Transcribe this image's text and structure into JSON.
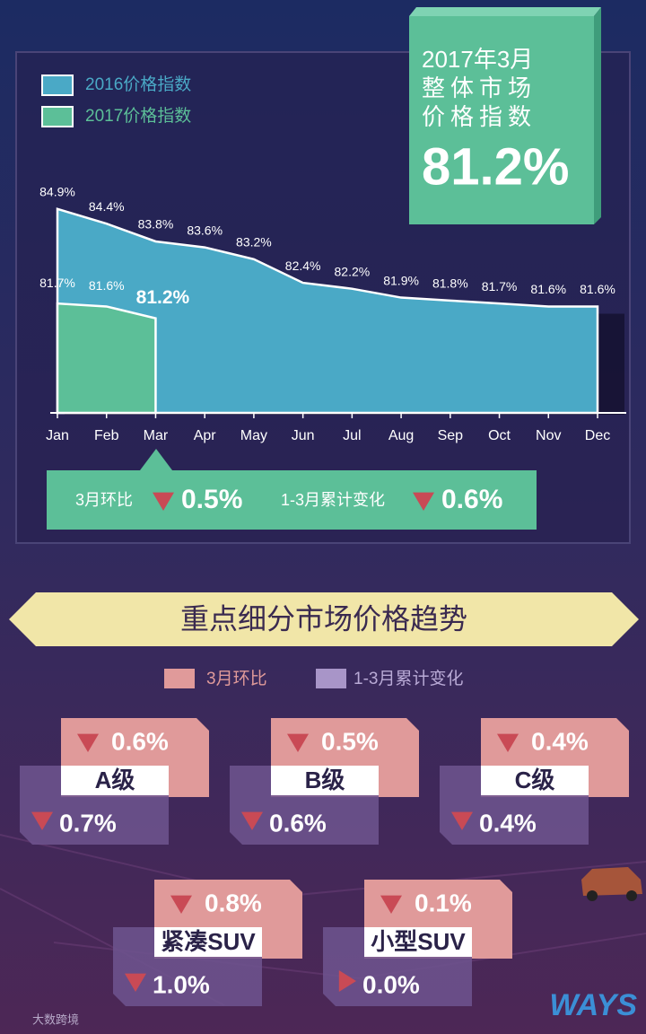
{
  "chart_data": {
    "type": "area",
    "categories": [
      "Jan",
      "Feb",
      "Mar",
      "Apr",
      "May",
      "Jun",
      "Jul",
      "Aug",
      "Sep",
      "Oct",
      "Nov",
      "Dec"
    ],
    "series": [
      {
        "name": "2016价格指数",
        "color": "#4aa9c6",
        "values": [
          84.9,
          84.4,
          83.8,
          83.6,
          83.2,
          82.4,
          82.2,
          81.9,
          81.8,
          81.7,
          81.6,
          81.6
        ],
        "value_labels": [
          "84.9%",
          "84.4%",
          "83.8%",
          "83.6%",
          "83.2%",
          "82.4%",
          "82.2%",
          "81.9%",
          "81.8%",
          "81.7%",
          "81.6%",
          "81.6%"
        ]
      },
      {
        "name": "2017价格指数",
        "color": "#5cbf98",
        "values": [
          81.7,
          81.6,
          81.2,
          null,
          null,
          null,
          null,
          null,
          null,
          null,
          null,
          null
        ],
        "value_labels": [
          "81.7%",
          "81.6%",
          "81.2%",
          null,
          null,
          null,
          null,
          null,
          null,
          null,
          null,
          null
        ]
      }
    ],
    "ylim": [
      78,
      85.5
    ],
    "legend": "top-left"
  },
  "callout": {
    "lines": [
      "2017年3月",
      "整体市场",
      "价格指数"
    ],
    "value": "81.2%"
  },
  "summary": [
    {
      "label": "3月环比",
      "value": "0.5%",
      "trend": "down"
    },
    {
      "label": "1-3月累计变化",
      "value": "0.6%",
      "trend": "down"
    }
  ],
  "section": {
    "title": "重点细分市场价格趋势",
    "legend": [
      "3月环比",
      "1-3月累计变化"
    ],
    "segments": [
      {
        "name": "A级",
        "monthly": "0.6%",
        "monthly_trend": "down",
        "cumulative": "0.7%",
        "cumulative_trend": "down"
      },
      {
        "name": "B级",
        "monthly": "0.5%",
        "monthly_trend": "down",
        "cumulative": "0.6%",
        "cumulative_trend": "down"
      },
      {
        "name": "C级",
        "monthly": "0.4%",
        "monthly_trend": "down",
        "cumulative": "0.4%",
        "cumulative_trend": "down"
      },
      {
        "name": "紧凑SUV",
        "monthly": "0.8%",
        "monthly_trend": "down",
        "cumulative": "1.0%",
        "cumulative_trend": "down"
      },
      {
        "name": "小型SUV",
        "monthly": "0.1%",
        "monthly_trend": "down",
        "cumulative": "0.0%",
        "cumulative_trend": "flat"
      }
    ]
  },
  "footer": {
    "source": "大数跨境",
    "brand": "WAYS"
  }
}
